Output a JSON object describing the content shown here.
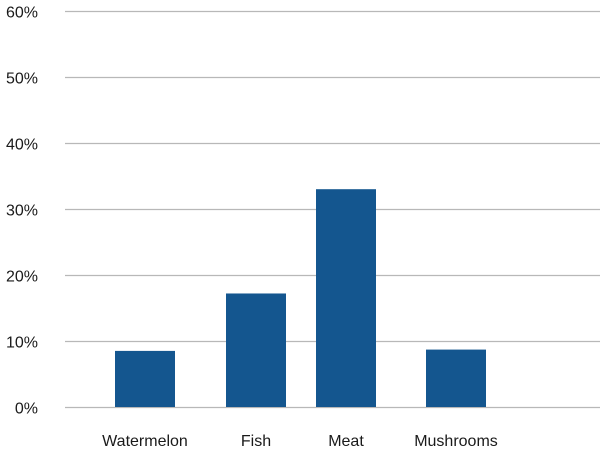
{
  "chart_data": {
    "type": "bar",
    "title": "",
    "xlabel": "",
    "ylabel": "",
    "categories": [
      "Watermelon",
      "Fish",
      "Meat",
      "Mushrooms"
    ],
    "values": [
      8.5,
      17.2,
      33.0,
      8.7
    ],
    "ylim": [
      0,
      60
    ],
    "yticks": [
      0,
      10,
      20,
      30,
      40,
      50,
      60
    ],
    "ytick_labels": [
      "0%",
      "10%",
      "20%",
      "30%",
      "40%",
      "50%",
      "60%"
    ],
    "grid": true,
    "legend": "none",
    "bar_color": "#14568f",
    "grid_color": "#b8b8b8"
  }
}
